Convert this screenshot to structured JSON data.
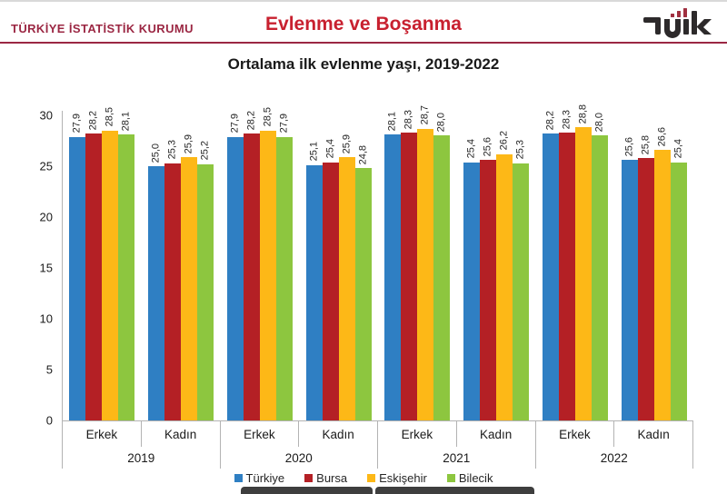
{
  "header": {
    "org": "TÜRKİYE İSTATİSTİK KURUMU",
    "title": "Evlenme ve Boşanma",
    "logo_text": "TÜİK"
  },
  "subtitle": "Ortalama ilk evlenme yaşı, 2019-2022",
  "colors": {
    "title_red": "#c8202f",
    "org_maroon": "#9b2743",
    "axis_gray": "#b3b3b3",
    "logo_dark": "#2d2a2b",
    "logo_red": "#a03040",
    "bottom_bar": "#3e3e3e"
  },
  "chart_data": {
    "type": "bar",
    "title": "Ortalama ilk evlenme yaşı, 2019-2022",
    "xlabel": "",
    "ylabel": "",
    "ylim": [
      0,
      30
    ],
    "yticks": [
      0,
      5,
      10,
      15,
      20,
      25,
      30
    ],
    "grid": false,
    "legend_position": "bottom",
    "decimal_separator": ",",
    "series": [
      {
        "name": "Türkiye",
        "color": "#2f7fc3"
      },
      {
        "name": "Bursa",
        "color": "#b42025"
      },
      {
        "name": "Eskişehir",
        "color": "#fdb817"
      },
      {
        "name": "Bilecik",
        "color": "#8dc63f"
      }
    ],
    "groups": [
      {
        "year": "2019",
        "subgroups": [
          {
            "label": "Erkek",
            "values": [
              27.9,
              28.2,
              28.5,
              28.1
            ],
            "labels": [
              "27,9",
              "28,2",
              "28,5",
              "28,1"
            ]
          },
          {
            "label": "Kadın",
            "values": [
              25.0,
              25.3,
              25.9,
              25.2
            ],
            "labels": [
              "25,0",
              "25,3",
              "25,9",
              "25,2"
            ]
          }
        ]
      },
      {
        "year": "2020",
        "subgroups": [
          {
            "label": "Erkek",
            "values": [
              27.9,
              28.2,
              28.5,
              27.9
            ],
            "labels": [
              "27,9",
              "28,2",
              "28,5",
              "27,9"
            ]
          },
          {
            "label": "Kadın",
            "values": [
              25.1,
              25.4,
              25.9,
              24.8
            ],
            "labels": [
              "25,1",
              "25,4",
              "25,9",
              "24,8"
            ]
          }
        ]
      },
      {
        "year": "2021",
        "subgroups": [
          {
            "label": "Erkek",
            "values": [
              28.1,
              28.3,
              28.7,
              28.0
            ],
            "labels": [
              "28,1",
              "28,3",
              "28,7",
              "28,0"
            ]
          },
          {
            "label": "Kadın",
            "values": [
              25.4,
              25.6,
              26.2,
              25.3
            ],
            "labels": [
              "25,4",
              "25,6",
              "26,2",
              "25,3"
            ]
          }
        ]
      },
      {
        "year": "2022",
        "subgroups": [
          {
            "label": "Erkek",
            "values": [
              28.2,
              28.3,
              28.8,
              28.0
            ],
            "labels": [
              "28,2",
              "28,3",
              "28,8",
              "28,0"
            ]
          },
          {
            "label": "Kadın",
            "values": [
              25.6,
              25.8,
              26.6,
              25.4
            ],
            "labels": [
              "25,6",
              "25,8",
              "26,6",
              "25,4"
            ]
          }
        ]
      }
    ]
  }
}
